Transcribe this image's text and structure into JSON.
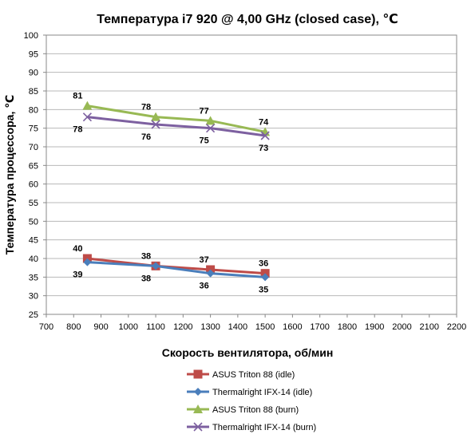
{
  "chart_data": {
    "type": "line",
    "title": "Температура i7 920 @ 4,00 GHz (closed case), ℃",
    "xlabel": "Скорость вентилятора, об/мин",
    "ylabel": "Температура процессора, ℃",
    "xlim": [
      700,
      2200
    ],
    "ylim": [
      25,
      100
    ],
    "x_ticks": [
      "700",
      "800",
      "900",
      "1000",
      "1100",
      "1200",
      "1300",
      "1400",
      "1500",
      "1600",
      "1700",
      "1800",
      "1900",
      "2000",
      "2100",
      "2200"
    ],
    "y_ticks": [
      "25",
      "30",
      "35",
      "40",
      "45",
      "50",
      "55",
      "60",
      "65",
      "70",
      "75",
      "80",
      "85",
      "90",
      "95",
      "100"
    ],
    "grid": "horizontal",
    "legend_position": "bottom",
    "series": [
      {
        "name": "ASUS Triton 88 (idle)",
        "color": "#be4b48",
        "marker": "square",
        "x": [
          850,
          1100,
          1300,
          1500
        ],
        "values": [
          40,
          38,
          37,
          36
        ],
        "labels": [
          "40",
          "38",
          "37",
          "36"
        ],
        "label_pos": "above"
      },
      {
        "name": "Thermalright IFX-14 (idle)",
        "color": "#4a7ebb",
        "marker": "diamond",
        "x": [
          850,
          1100,
          1300,
          1500
        ],
        "values": [
          39,
          38,
          36,
          35
        ],
        "labels": [
          "39",
          "38",
          "36",
          "35"
        ],
        "label_pos": "below"
      },
      {
        "name": "ASUS Triton 88 (burn)",
        "color": "#98b954",
        "marker": "triangle",
        "x": [
          850,
          1100,
          1300,
          1500
        ],
        "values": [
          81,
          78,
          77,
          74
        ],
        "labels": [
          "81",
          "78",
          "77",
          "74"
        ],
        "label_pos": "above"
      },
      {
        "name": "Thermalright IFX-14 (burn)",
        "color": "#7d60a0",
        "marker": "x",
        "x": [
          850,
          1100,
          1300,
          1500
        ],
        "values": [
          78,
          76,
          75,
          73
        ],
        "labels": [
          "78",
          "76",
          "75",
          "73"
        ],
        "label_pos": "below"
      }
    ]
  }
}
